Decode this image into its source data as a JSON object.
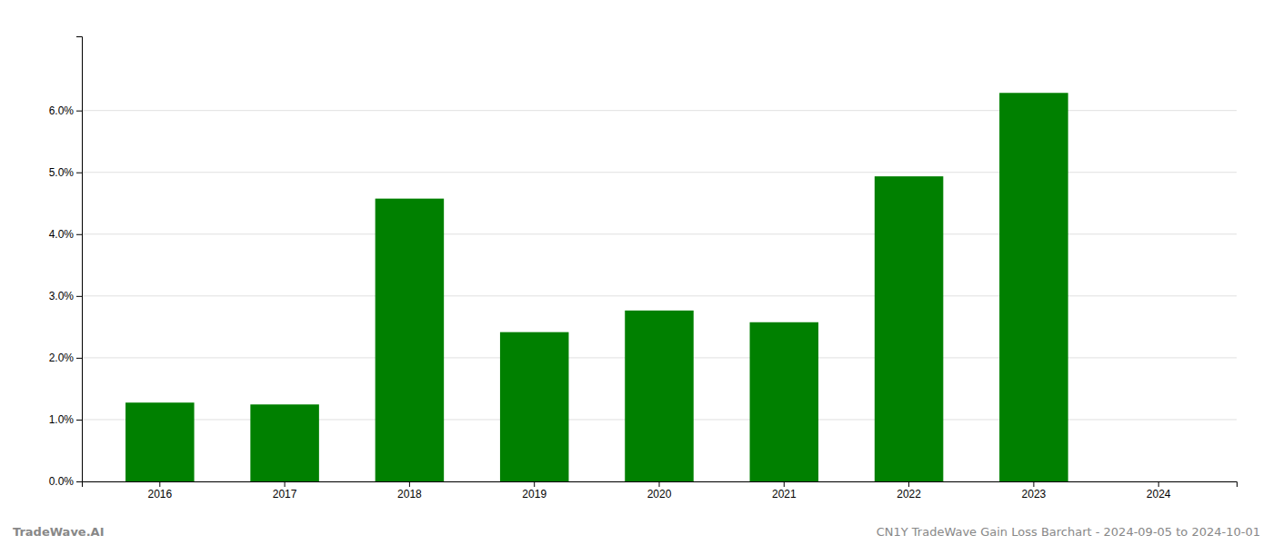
{
  "chart_data": {
    "type": "bar",
    "categories": [
      "2016",
      "2017",
      "2018",
      "2019",
      "2020",
      "2021",
      "2022",
      "2023",
      "2024"
    ],
    "values": [
      0.01275,
      0.01245,
      0.04575,
      0.02415,
      0.02765,
      0.02575,
      0.04935,
      0.06285,
      null
    ],
    "color": "#008000",
    "ylim": [
      0,
      0.072
    ],
    "yticks": [
      {
        "value": 0.0,
        "label": "0.0%"
      },
      {
        "value": 0.01,
        "label": "1.0%"
      },
      {
        "value": 0.02,
        "label": "2.0%"
      },
      {
        "value": 0.03,
        "label": "3.0%"
      },
      {
        "value": 0.04,
        "label": "4.0%"
      },
      {
        "value": 0.05,
        "label": "5.0%"
      },
      {
        "value": 0.06,
        "label": "6.0%"
      }
    ],
    "grid": true,
    "annotations": [
      "TradeWave.AI",
      "CN1Y TradeWave Gain Loss Barchart - 2024-09-05 to 2024-10-01"
    ]
  }
}
